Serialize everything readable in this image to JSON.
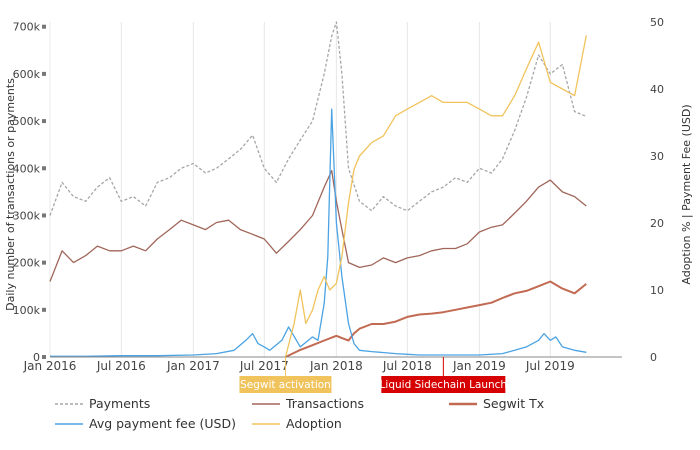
{
  "chart_data": {
    "type": "line",
    "x_ticks": [
      "Jan 2016",
      "Jul 2016",
      "Jan 2017",
      "Jul 2017",
      "Jan 2018",
      "Jul 2018",
      "Jan 2019",
      "Jul 2019"
    ],
    "x_range": [
      "2016-01-01",
      "2019-12-31"
    ],
    "left_axis": {
      "title": "Daily number of transactions or payments",
      "range": [
        0,
        710000
      ],
      "ticks": [
        "0",
        "100k",
        "200k",
        "300k",
        "400k",
        "500k",
        "600k",
        "700k"
      ],
      "tick_values": [
        0,
        100000,
        200000,
        300000,
        400000,
        500000,
        600000,
        700000
      ]
    },
    "right_axis": {
      "title": "Adoption % | Payment Fee (USD)",
      "range": [
        0,
        50
      ],
      "ticks": [
        "0",
        "10",
        "20",
        "30",
        "40",
        "50"
      ],
      "tick_values": [
        0,
        10,
        20,
        30,
        40,
        50
      ]
    },
    "grid": true,
    "legend_placement": "bottom",
    "series": [
      {
        "name": "Payments",
        "axis": "left",
        "color": "#a6a6a6",
        "dash": true,
        "x": [
          "2016-01-01",
          "2016-02-01",
          "2016-03-01",
          "2016-04-01",
          "2016-05-01",
          "2016-06-01",
          "2016-07-01",
          "2016-08-01",
          "2016-09-01",
          "2016-10-01",
          "2016-11-01",
          "2016-12-01",
          "2017-01-01",
          "2017-02-01",
          "2017-03-01",
          "2017-04-01",
          "2017-05-01",
          "2017-06-01",
          "2017-07-01",
          "2017-08-01",
          "2017-09-01",
          "2017-10-01",
          "2017-11-01",
          "2017-12-01",
          "2017-12-20",
          "2018-01-01",
          "2018-01-15",
          "2018-02-01",
          "2018-03-01",
          "2018-04-01",
          "2018-05-01",
          "2018-06-01",
          "2018-07-01",
          "2018-08-01",
          "2018-09-01",
          "2018-10-01",
          "2018-11-01",
          "2018-12-01",
          "2019-01-01",
          "2019-02-01",
          "2019-03-01",
          "2019-04-01",
          "2019-05-01",
          "2019-06-01",
          "2019-07-01",
          "2019-08-01",
          "2019-09-01",
          "2019-10-01"
        ],
        "values": [
          300000,
          370000,
          340000,
          330000,
          360000,
          380000,
          330000,
          340000,
          320000,
          370000,
          380000,
          400000,
          410000,
          390000,
          400000,
          420000,
          440000,
          470000,
          400000,
          370000,
          420000,
          460000,
          500000,
          600000,
          680000,
          710000,
          600000,
          400000,
          330000,
          310000,
          340000,
          320000,
          310000,
          330000,
          350000,
          360000,
          380000,
          370000,
          400000,
          390000,
          420000,
          480000,
          550000,
          640000,
          600000,
          620000,
          520000,
          510000
        ]
      },
      {
        "name": "Transactions",
        "axis": "left",
        "color": "#a0665a",
        "dash": false,
        "x": [
          "2016-01-01",
          "2016-02-01",
          "2016-03-01",
          "2016-04-01",
          "2016-05-01",
          "2016-06-01",
          "2016-07-01",
          "2016-08-01",
          "2016-09-01",
          "2016-10-01",
          "2016-11-01",
          "2016-12-01",
          "2017-01-01",
          "2017-02-01",
          "2017-03-01",
          "2017-04-01",
          "2017-05-01",
          "2017-06-01",
          "2017-07-01",
          "2017-08-01",
          "2017-09-01",
          "2017-10-01",
          "2017-11-01",
          "2017-12-01",
          "2017-12-20",
          "2018-01-01",
          "2018-01-15",
          "2018-02-01",
          "2018-03-01",
          "2018-04-01",
          "2018-05-01",
          "2018-06-01",
          "2018-07-01",
          "2018-08-01",
          "2018-09-01",
          "2018-10-01",
          "2018-11-01",
          "2018-12-01",
          "2019-01-01",
          "2019-02-01",
          "2019-03-01",
          "2019-04-01",
          "2019-05-01",
          "2019-06-01",
          "2019-07-01",
          "2019-08-01",
          "2019-09-01",
          "2019-10-01"
        ],
        "values": [
          160000,
          225000,
          200000,
          215000,
          235000,
          225000,
          225000,
          235000,
          225000,
          250000,
          270000,
          290000,
          280000,
          270000,
          285000,
          290000,
          270000,
          260000,
          250000,
          220000,
          245000,
          270000,
          300000,
          360000,
          395000,
          330000,
          270000,
          200000,
          190000,
          195000,
          210000,
          200000,
          210000,
          215000,
          225000,
          230000,
          230000,
          240000,
          265000,
          275000,
          280000,
          305000,
          330000,
          360000,
          375000,
          350000,
          340000,
          320000
        ]
      },
      {
        "name": "Segwit Tx",
        "axis": "left",
        "color": "#c26a52",
        "dash": false,
        "x": [
          "2017-08-24",
          "2017-10-01",
          "2017-11-01",
          "2017-12-01",
          "2018-01-01",
          "2018-01-15",
          "2018-02-01",
          "2018-02-15",
          "2018-03-01",
          "2018-04-01",
          "2018-05-01",
          "2018-06-01",
          "2018-07-01",
          "2018-08-01",
          "2018-09-01",
          "2018-10-01",
          "2018-11-01",
          "2018-12-01",
          "2019-01-01",
          "2019-02-01",
          "2019-03-01",
          "2019-04-01",
          "2019-05-01",
          "2019-06-01",
          "2019-07-01",
          "2019-08-01",
          "2019-09-01",
          "2019-10-01"
        ],
        "values": [
          0,
          15000,
          25000,
          35000,
          45000,
          40000,
          35000,
          50000,
          60000,
          70000,
          70000,
          75000,
          85000,
          90000,
          92000,
          95000,
          100000,
          105000,
          110000,
          115000,
          125000,
          135000,
          140000,
          150000,
          160000,
          145000,
          135000,
          155000
        ]
      },
      {
        "name": "Avg payment fee (USD)",
        "axis": "right",
        "color": "#4ba3e3",
        "dash": false,
        "x": [
          "2016-01-01",
          "2016-04-01",
          "2016-07-01",
          "2016-10-01",
          "2017-01-01",
          "2017-03-01",
          "2017-04-15",
          "2017-05-15",
          "2017-06-01",
          "2017-06-15",
          "2017-07-01",
          "2017-07-15",
          "2017-08-15",
          "2017-09-01",
          "2017-10-01",
          "2017-11-01",
          "2017-11-15",
          "2017-12-01",
          "2017-12-10",
          "2017-12-20",
          "2018-01-01",
          "2018-01-15",
          "2018-02-01",
          "2018-02-15",
          "2018-03-01",
          "2018-04-01",
          "2018-06-01",
          "2018-07-01",
          "2018-08-01",
          "2018-09-01",
          "2018-10-01",
          "2018-11-01",
          "2018-12-01",
          "2019-01-01",
          "2019-03-01",
          "2019-04-01",
          "2019-05-01",
          "2019-06-01",
          "2019-06-15",
          "2019-07-01",
          "2019-07-15",
          "2019-08-01",
          "2019-09-01",
          "2019-10-01"
        ],
        "values": [
          0.1,
          0.1,
          0.2,
          0.2,
          0.3,
          0.5,
          1.0,
          2.5,
          3.5,
          2.0,
          1.5,
          1.0,
          2.5,
          4.5,
          1.5,
          3.0,
          2.5,
          8.0,
          15.0,
          37.0,
          20.0,
          12.0,
          5.0,
          2.0,
          1.0,
          0.8,
          0.5,
          0.4,
          0.3,
          0.3,
          0.3,
          0.3,
          0.3,
          0.3,
          0.5,
          1.0,
          1.5,
          2.5,
          3.5,
          2.5,
          3.0,
          1.5,
          1.0,
          0.7
        ]
      },
      {
        "name": "Adoption",
        "axis": "right",
        "color": "#f1c35c",
        "dash": false,
        "x": [
          "2017-08-24",
          "2017-09-15",
          "2017-10-01",
          "2017-10-15",
          "2017-11-01",
          "2017-11-15",
          "2017-12-01",
          "2017-12-15",
          "2018-01-01",
          "2018-01-15",
          "2018-02-01",
          "2018-02-15",
          "2018-03-01",
          "2018-04-01",
          "2018-05-01",
          "2018-06-01",
          "2018-07-01",
          "2018-08-01",
          "2018-09-01",
          "2018-10-01",
          "2018-11-01",
          "2018-12-01",
          "2019-01-01",
          "2019-02-01",
          "2019-03-01",
          "2019-04-01",
          "2019-05-01",
          "2019-06-01",
          "2019-07-01",
          "2019-08-01",
          "2019-09-01",
          "2019-10-01"
        ],
        "values": [
          0,
          5,
          10,
          5,
          7,
          10,
          12,
          10,
          11,
          15,
          23,
          28,
          30,
          32,
          33,
          36,
          37,
          38,
          39,
          38,
          38,
          38,
          37,
          36,
          36,
          39,
          43,
          47,
          41,
          40,
          39,
          48
        ]
      }
    ],
    "annotations": [
      {
        "text": "Segwit activation",
        "x": "2017-08-24",
        "color": "#f1c35c"
      },
      {
        "text": "Liquid Sidechain Launch",
        "x": "2018-10-01",
        "color": "#d60000"
      }
    ]
  }
}
